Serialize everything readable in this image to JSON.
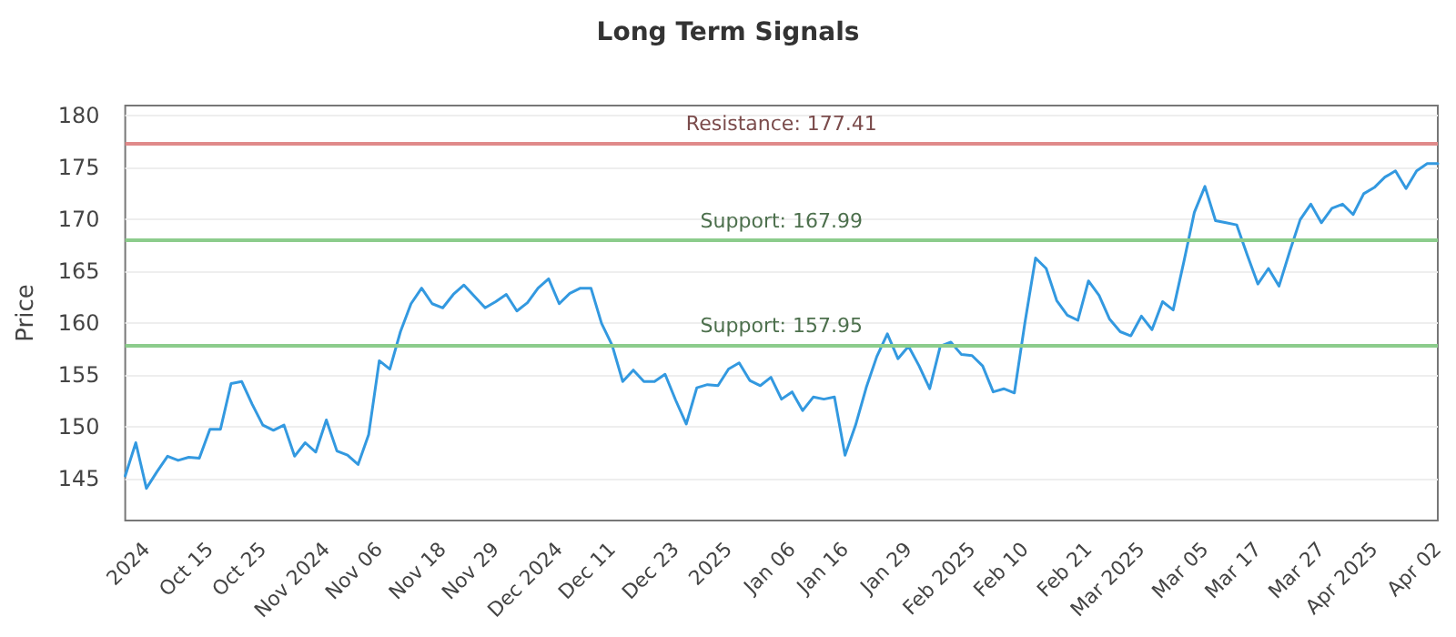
{
  "chart_data": {
    "type": "line",
    "title": "Long Term Signals",
    "ylabel": "Price",
    "categories": [
      null,
      null,
      "2024",
      null,
      null,
      null,
      null,
      null,
      "Oct 15",
      null,
      null,
      null,
      null,
      "Oct 25",
      null,
      null,
      null,
      null,
      null,
      "Nov 2024",
      null,
      null,
      null,
      null,
      "Nov 06",
      null,
      null,
      null,
      null,
      null,
      "Nov 18",
      null,
      null,
      null,
      null,
      "Nov 29",
      null,
      null,
      null,
      null,
      null,
      "Dec 2024",
      null,
      null,
      null,
      null,
      "Dec 11",
      null,
      null,
      null,
      null,
      null,
      "Dec 23",
      null,
      null,
      null,
      null,
      "2025",
      null,
      null,
      null,
      null,
      null,
      "Jan 06",
      null,
      null,
      null,
      null,
      "Jan 16",
      null,
      null,
      null,
      null,
      null,
      "Jan 29",
      null,
      null,
      null,
      null,
      null,
      "Feb 2025",
      null,
      null,
      null,
      null,
      "Feb 10",
      null,
      null,
      null,
      null,
      null,
      "Feb 21",
      null,
      null,
      null,
      null,
      "Mar 2025",
      null,
      null,
      null,
      null,
      null,
      "Mar 05",
      null,
      null,
      null,
      null,
      "Mar 17",
      null,
      null,
      null,
      null,
      null,
      "Mar 27",
      null,
      null,
      null,
      null,
      "Apr 2025",
      null,
      null,
      null,
      null,
      null,
      "Apr 02"
    ],
    "series": [
      {
        "color": "#3399e0",
        "values": [
          145.3,
          148.5,
          144.1,
          145.7,
          147.2,
          146.8,
          147.1,
          147.0,
          149.8,
          149.8,
          154.2,
          154.4,
          152.2,
          150.2,
          149.7,
          150.2,
          147.2,
          148.5,
          147.6,
          150.7,
          147.7,
          147.3,
          146.4,
          149.3,
          156.4,
          155.6,
          159.2,
          161.9,
          163.4,
          161.9,
          161.5,
          162.8,
          163.7,
          162.6,
          161.5,
          162.1,
          162.8,
          161.2,
          162.0,
          163.4,
          164.3,
          161.9,
          162.9,
          163.4,
          163.4,
          160.0,
          157.9,
          154.4,
          155.5,
          154.4,
          154.4,
          155.1,
          152.6,
          150.3,
          153.8,
          154.1,
          154.0,
          155.6,
          156.2,
          154.5,
          154.0,
          154.8,
          152.7,
          153.4,
          151.6,
          152.9,
          152.7,
          152.9,
          147.3,
          150.2,
          153.8,
          156.8,
          159.0,
          156.6,
          157.8,
          155.9,
          153.7,
          157.8,
          158.2,
          157.0,
          156.9,
          155.9,
          153.4,
          153.7,
          153.3,
          160.1,
          166.3,
          165.3,
          162.2,
          160.8,
          160.3,
          164.1,
          162.7,
          160.4,
          159.2,
          158.8,
          160.7,
          159.4,
          162.1,
          161.3,
          165.9,
          170.7,
          173.2,
          169.9,
          169.7,
          169.5,
          166.6,
          163.8,
          165.3,
          163.6,
          166.9,
          170.0,
          171.5,
          169.7,
          171.1,
          171.5,
          170.5,
          172.5,
          173.1,
          174.1,
          174.7,
          173.0,
          174.7,
          175.4,
          175.4
        ]
      }
    ],
    "ylim": [
      141,
      181
    ],
    "yticks": [
      145,
      150,
      155,
      160,
      165,
      170,
      175,
      180
    ],
    "grid": "y",
    "marker": "none",
    "line_style": "solid",
    "ref_lines": [
      {
        "axis": "y",
        "value": 177.41,
        "label": "Resistance: 177.41",
        "color": "#e08a8a"
      },
      {
        "axis": "y",
        "value": 167.99,
        "label": "Support: 167.99",
        "color": "#8ccc8c"
      },
      {
        "axis": "y",
        "value": 157.95,
        "label": "Support: 157.95",
        "color": "#8ccc8c"
      }
    ]
  }
}
